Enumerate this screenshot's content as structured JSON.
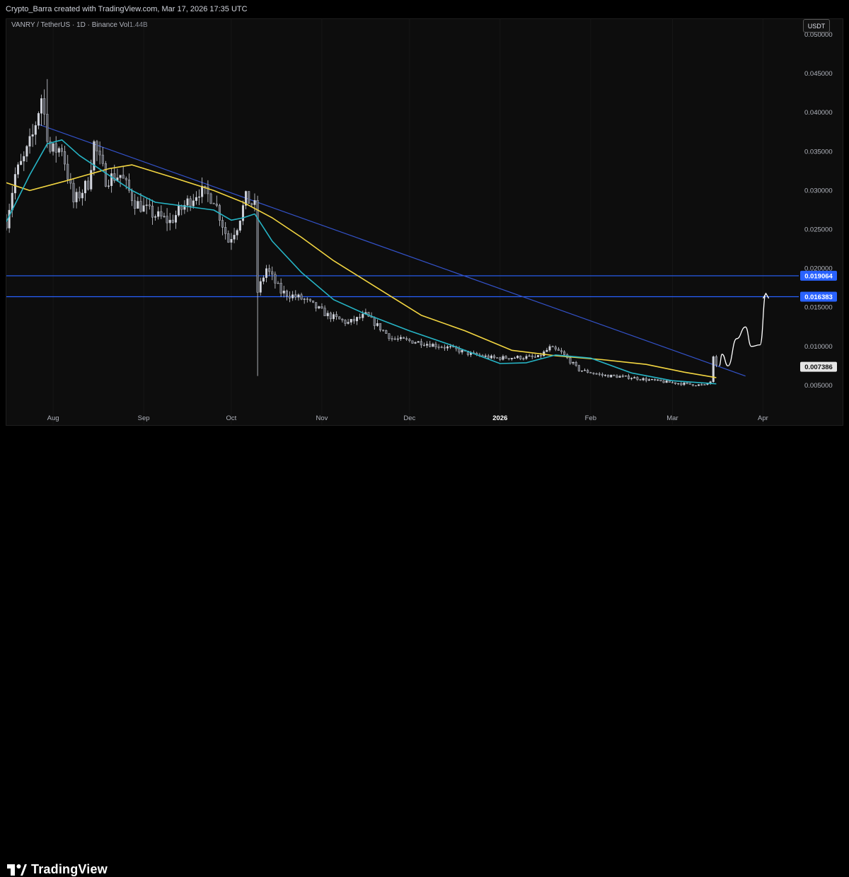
{
  "header": {
    "credit": "Crypto_Barra created with TradingView.com, Mar 17, 2026 17:35 UTC"
  },
  "symbol": {
    "pair": "VANRY / TetherUS · 1D · Binance",
    "vol_label": "Vol",
    "vol_value": "1.44B"
  },
  "currency": "USDT",
  "footer": {
    "brand": "TradingView"
  },
  "colors": {
    "background": "#0d0d0d",
    "candle": "#d1d4dc",
    "ma_fast": "#26b4c5",
    "ma_slow": "#f2d541",
    "trendline": "#3352c9",
    "level": "#2962ff",
    "arrow": "#ffffff"
  },
  "chart_data": {
    "type": "candlestick",
    "y_scale": "linear",
    "ylim": [
      0,
      0.052
    ],
    "x_range": [
      "2025-07-16",
      "2026-04-13"
    ],
    "y_ticks": [
      "0.050000",
      "0.045000",
      "0.040000",
      "0.035000",
      "0.030000",
      "0.025000",
      "0.020000",
      "0.015000",
      "0.010000",
      "0.005000"
    ],
    "x_ticks": [
      {
        "label": "Aug",
        "date": "2025-08-01",
        "bold": false
      },
      {
        "label": "Sep",
        "date": "2025-09-01",
        "bold": false
      },
      {
        "label": "Oct",
        "date": "2025-10-01",
        "bold": false
      },
      {
        "label": "Nov",
        "date": "2025-11-01",
        "bold": false
      },
      {
        "label": "Dec",
        "date": "2025-12-01",
        "bold": false
      },
      {
        "label": "2026",
        "date": "2026-01-01",
        "bold": true
      },
      {
        "label": "Feb",
        "date": "2026-02-01",
        "bold": false
      },
      {
        "label": "Mar",
        "date": "2026-03-01",
        "bold": false
      },
      {
        "label": "Apr",
        "date": "2026-04-01",
        "bold": false
      }
    ],
    "horizontal_levels": [
      {
        "value": 0.019064,
        "label": "0.019064"
      },
      {
        "value": 0.016383,
        "label": "0.016383"
      }
    ],
    "last_price": {
      "value": 0.007386,
      "label": "0.007386"
    },
    "trendline": {
      "from": {
        "date": "2025-07-27",
        "price": 0.0385
      },
      "to": {
        "date": "2026-03-26",
        "price": 0.0062
      }
    },
    "price_path": [
      {
        "date": "2025-07-16",
        "price": 0.026
      },
      {
        "date": "2025-07-19",
        "price": 0.032
      },
      {
        "date": "2025-07-22",
        "price": 0.034
      },
      {
        "date": "2025-07-25",
        "price": 0.037
      },
      {
        "date": "2025-07-28",
        "price": 0.042
      },
      {
        "date": "2025-07-31",
        "price": 0.035
      },
      {
        "date": "2025-08-04",
        "price": 0.0355
      },
      {
        "date": "2025-08-08",
        "price": 0.0285
      },
      {
        "date": "2025-08-13",
        "price": 0.031
      },
      {
        "date": "2025-08-15",
        "price": 0.036
      },
      {
        "date": "2025-08-19",
        "price": 0.0315
      },
      {
        "date": "2025-08-24",
        "price": 0.032
      },
      {
        "date": "2025-08-29",
        "price": 0.0285
      },
      {
        "date": "2025-09-04",
        "price": 0.027
      },
      {
        "date": "2025-09-10",
        "price": 0.026
      },
      {
        "date": "2025-09-16",
        "price": 0.0285
      },
      {
        "date": "2025-09-20",
        "price": 0.03
      },
      {
        "date": "2025-09-25",
        "price": 0.029
      },
      {
        "date": "2025-09-30",
        "price": 0.0235
      },
      {
        "date": "2025-10-03",
        "price": 0.0255
      },
      {
        "date": "2025-10-06",
        "price": 0.029
      },
      {
        "date": "2025-10-09",
        "price": 0.028
      },
      {
        "date": "2025-10-10",
        "price": 0.017
      },
      {
        "date": "2025-10-13",
        "price": 0.02
      },
      {
        "date": "2025-10-18",
        "price": 0.017
      },
      {
        "date": "2025-10-26",
        "price": 0.016
      },
      {
        "date": "2025-11-03",
        "price": 0.014
      },
      {
        "date": "2025-11-10",
        "price": 0.013
      },
      {
        "date": "2025-11-16",
        "price": 0.014
      },
      {
        "date": "2025-11-25",
        "price": 0.011
      },
      {
        "date": "2025-12-05",
        "price": 0.0105
      },
      {
        "date": "2025-12-15",
        "price": 0.0098
      },
      {
        "date": "2025-12-22",
        "price": 0.009
      },
      {
        "date": "2025-12-30",
        "price": 0.0085
      },
      {
        "date": "2026-01-08",
        "price": 0.0086
      },
      {
        "date": "2026-01-14",
        "price": 0.0086
      },
      {
        "date": "2026-01-18",
        "price": 0.0098
      },
      {
        "date": "2026-01-22",
        "price": 0.0092
      },
      {
        "date": "2026-01-28",
        "price": 0.007
      },
      {
        "date": "2026-02-05",
        "price": 0.0063
      },
      {
        "date": "2026-02-15",
        "price": 0.006
      },
      {
        "date": "2026-02-25",
        "price": 0.0055
      },
      {
        "date": "2026-03-05",
        "price": 0.0052
      },
      {
        "date": "2026-03-12",
        "price": 0.005
      },
      {
        "date": "2026-03-14",
        "price": 0.0055
      },
      {
        "date": "2026-03-15",
        "price": 0.0085
      },
      {
        "date": "2026-03-16",
        "price": 0.0074
      }
    ],
    "wick_extremes": [
      {
        "date": "2025-07-30",
        "high": 0.0443
      },
      {
        "date": "2025-10-10",
        "low": 0.0062
      }
    ],
    "ma_fast": [
      {
        "date": "2025-07-16",
        "value": 0.026
      },
      {
        "date": "2025-07-24",
        "value": 0.032
      },
      {
        "date": "2025-07-30",
        "value": 0.036
      },
      {
        "date": "2025-08-04",
        "value": 0.0365
      },
      {
        "date": "2025-08-10",
        "value": 0.0345
      },
      {
        "date": "2025-08-20",
        "value": 0.032
      },
      {
        "date": "2025-08-28",
        "value": 0.03
      },
      {
        "date": "2025-09-05",
        "value": 0.0285
      },
      {
        "date": "2025-09-15",
        "value": 0.028
      },
      {
        "date": "2025-09-25",
        "value": 0.0275
      },
      {
        "date": "2025-10-01",
        "value": 0.0262
      },
      {
        "date": "2025-10-05",
        "value": 0.0265
      },
      {
        "date": "2025-10-09",
        "value": 0.027
      },
      {
        "date": "2025-10-15",
        "value": 0.0235
      },
      {
        "date": "2025-10-25",
        "value": 0.0195
      },
      {
        "date": "2025-11-05",
        "value": 0.016
      },
      {
        "date": "2025-11-15",
        "value": 0.0143
      },
      {
        "date": "2025-12-01",
        "value": 0.012
      },
      {
        "date": "2025-12-15",
        "value": 0.0102
      },
      {
        "date": "2026-01-01",
        "value": 0.0078
      },
      {
        "date": "2026-01-10",
        "value": 0.0079
      },
      {
        "date": "2026-01-20",
        "value": 0.0089
      },
      {
        "date": "2026-02-01",
        "value": 0.0085
      },
      {
        "date": "2026-02-15",
        "value": 0.0066
      },
      {
        "date": "2026-03-01",
        "value": 0.0056
      },
      {
        "date": "2026-03-16",
        "value": 0.0052
      }
    ],
    "ma_slow": [
      {
        "date": "2025-07-16",
        "value": 0.031
      },
      {
        "date": "2025-07-24",
        "value": 0.03
      },
      {
        "date": "2025-08-05",
        "value": 0.0312
      },
      {
        "date": "2025-08-20",
        "value": 0.0328
      },
      {
        "date": "2025-08-28",
        "value": 0.0333
      },
      {
        "date": "2025-09-10",
        "value": 0.0318
      },
      {
        "date": "2025-09-25",
        "value": 0.03
      },
      {
        "date": "2025-10-05",
        "value": 0.0285
      },
      {
        "date": "2025-10-15",
        "value": 0.0265
      },
      {
        "date": "2025-10-25",
        "value": 0.024
      },
      {
        "date": "2025-11-05",
        "value": 0.021
      },
      {
        "date": "2025-11-20",
        "value": 0.0175
      },
      {
        "date": "2025-12-05",
        "value": 0.014
      },
      {
        "date": "2025-12-20",
        "value": 0.012
      },
      {
        "date": "2026-01-05",
        "value": 0.0095
      },
      {
        "date": "2026-01-20",
        "value": 0.0088
      },
      {
        "date": "2026-02-05",
        "value": 0.0083
      },
      {
        "date": "2026-02-20",
        "value": 0.0077
      },
      {
        "date": "2026-03-05",
        "value": 0.0067
      },
      {
        "date": "2026-03-16",
        "value": 0.006
      }
    ],
    "projection": [
      {
        "date": "2026-03-17",
        "price": 0.0075
      },
      {
        "date": "2026-03-18",
        "price": 0.009
      },
      {
        "date": "2026-03-20",
        "price": 0.0075
      },
      {
        "date": "2026-03-23",
        "price": 0.011
      },
      {
        "date": "2026-03-26",
        "price": 0.0125
      },
      {
        "date": "2026-03-28",
        "price": 0.01
      },
      {
        "date": "2026-03-31",
        "price": 0.0102
      },
      {
        "date": "2026-04-02",
        "price": 0.0168
      }
    ]
  }
}
